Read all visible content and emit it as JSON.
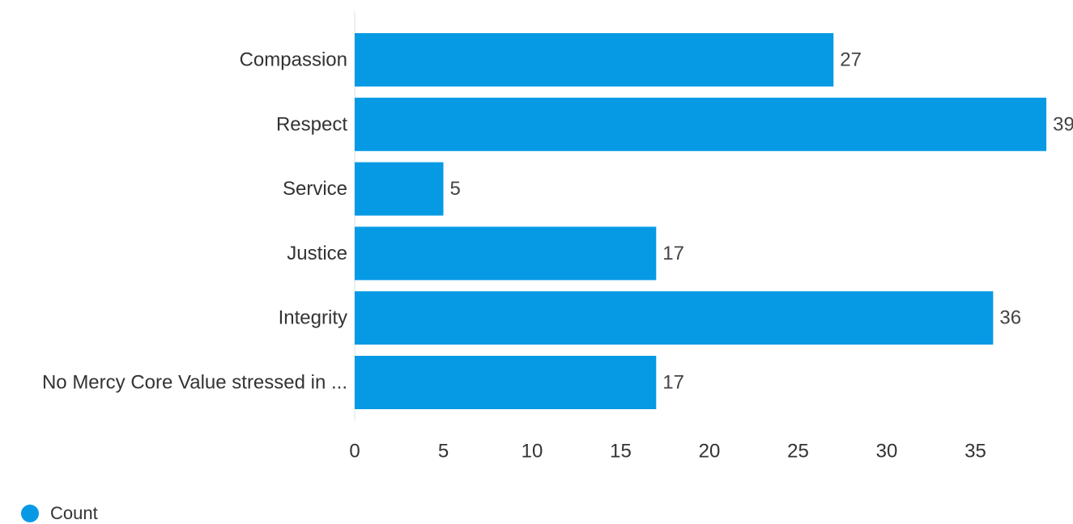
{
  "chart_data": {
    "type": "bar",
    "orientation": "horizontal",
    "title": "",
    "xlabel": "",
    "ylabel": "",
    "categories": [
      "Compassion",
      "Respect",
      "Service",
      "Justice",
      "Integrity",
      "No Mercy Core Value stressed in ..."
    ],
    "series": [
      {
        "name": "Count",
        "values": [
          27,
          39,
          5,
          17,
          36,
          17
        ],
        "color": "#069AE5"
      }
    ],
    "xlim": [
      0,
      39
    ],
    "x_ticks": [
      0,
      5,
      10,
      15,
      20,
      25,
      30,
      35
    ],
    "data_labels": true,
    "grid": false,
    "legend_position": "bottom-left"
  }
}
